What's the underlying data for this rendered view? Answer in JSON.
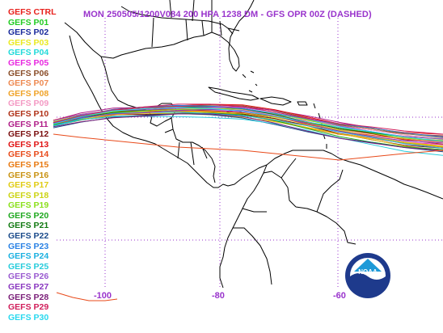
{
  "title": "MON 250505/1200V084  200 HPA 1238 DM - GFS OPR 00Z (DASHED)",
  "members": [
    {
      "label": "GEFS CTRL",
      "color": "#e8201c"
    },
    {
      "label": "GEFS P01",
      "color": "#22cc22"
    },
    {
      "label": "GEFS P02",
      "color": "#1a2a9c"
    },
    {
      "label": "GEFS P03",
      "color": "#eaea22"
    },
    {
      "label": "GEFS P04",
      "color": "#22dada"
    },
    {
      "label": "GEFS P05",
      "color": "#e828e0"
    },
    {
      "label": "GEFS P06",
      "color": "#8a4e2a"
    },
    {
      "label": "GEFS P07",
      "color": "#ee8a52"
    },
    {
      "label": "GEFS P08",
      "color": "#f0a42a"
    },
    {
      "label": "GEFS P09",
      "color": "#f49ac4"
    },
    {
      "label": "GEFS P10",
      "color": "#b03218"
    },
    {
      "label": "GEFS P11",
      "color": "#b01e88"
    },
    {
      "label": "GEFS P12",
      "color": "#7a0e0e"
    },
    {
      "label": "GEFS P13",
      "color": "#e01414"
    },
    {
      "label": "GEFS P14",
      "color": "#e84a1a"
    },
    {
      "label": "GEFS P15",
      "color": "#e87a12"
    },
    {
      "label": "GEFS P16",
      "color": "#c89212"
    },
    {
      "label": "GEFS P17",
      "color": "#e0cc14"
    },
    {
      "label": "GEFS P18",
      "color": "#ccd414"
    },
    {
      "label": "GEFS P19",
      "color": "#8ce01c"
    },
    {
      "label": "GEFS P20",
      "color": "#1ea81e"
    },
    {
      "label": "GEFS P21",
      "color": "#127a12"
    },
    {
      "label": "GEFS P22",
      "color": "#1a4a8a"
    },
    {
      "label": "GEFS P23",
      "color": "#2a82e4"
    },
    {
      "label": "GEFS P24",
      "color": "#1ab0e0"
    },
    {
      "label": "GEFS P25",
      "color": "#26ccdc"
    },
    {
      "label": "GEFS P26",
      "color": "#9a5ad0"
    },
    {
      "label": "GEFS P27",
      "color": "#8a38c0"
    },
    {
      "label": "GEFS P28",
      "color": "#7a1e78"
    },
    {
      "label": "GEFS P29",
      "color": "#d01e5a"
    },
    {
      "label": "GEFS P30",
      "color": "#28d8ee"
    }
  ],
  "longitude_labels": [
    "-100",
    "-80",
    "-60"
  ],
  "logo_text": "NOAA"
}
